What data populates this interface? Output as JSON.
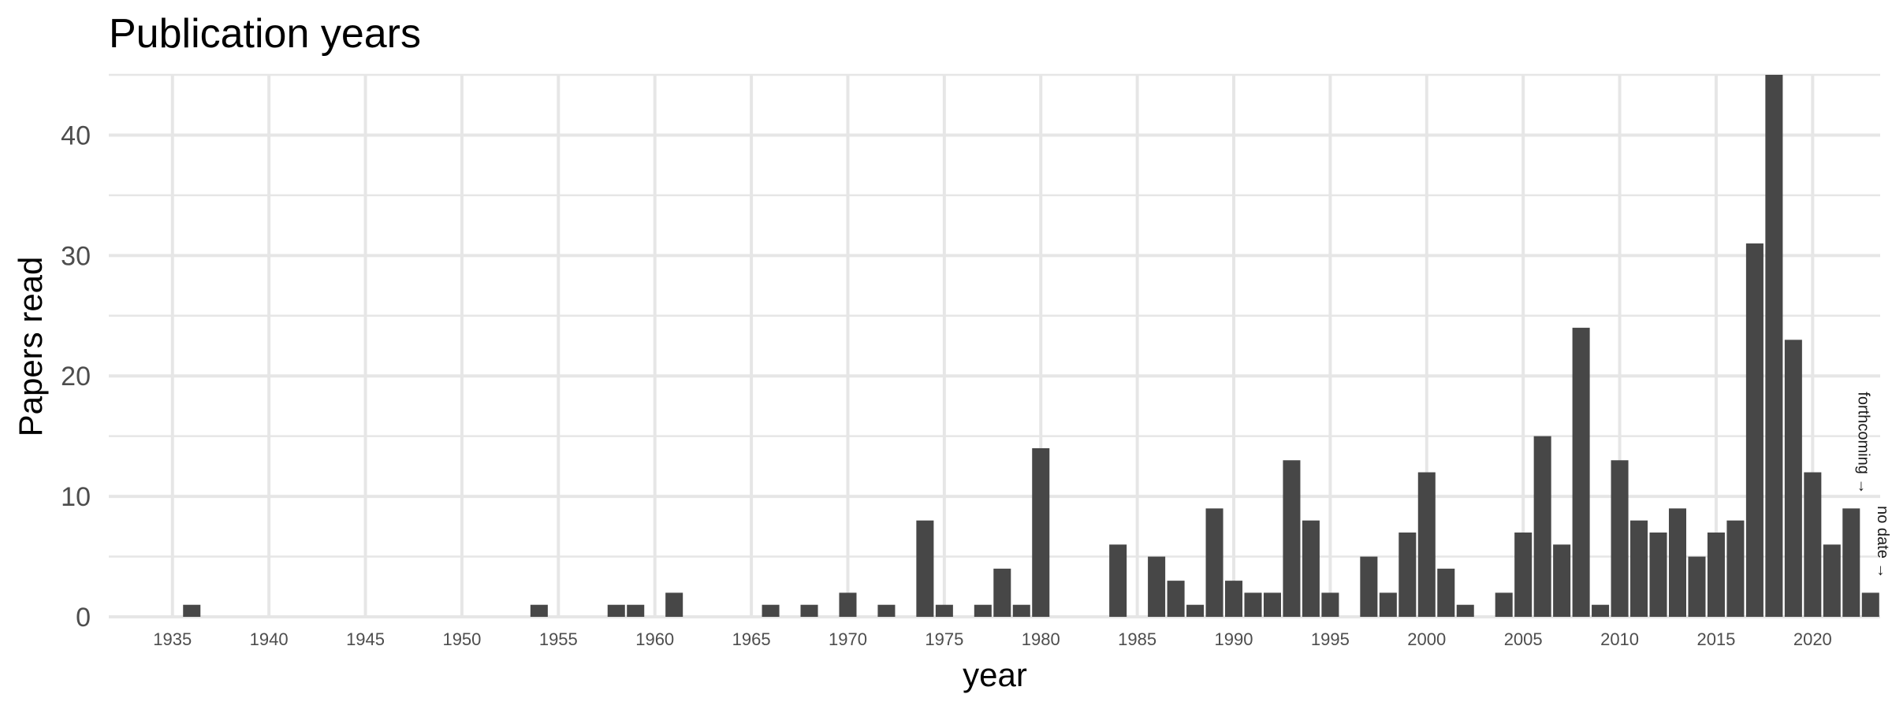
{
  "chart_data": {
    "type": "bar",
    "title": "Publication years",
    "xlabel": "year",
    "ylabel": "Papers read",
    "ylim": [
      0,
      45
    ],
    "yticks": [
      0,
      10,
      20,
      30,
      40
    ],
    "xticks": [
      1935,
      1940,
      1945,
      1950,
      1955,
      1960,
      1965,
      1970,
      1975,
      1980,
      1985,
      1990,
      1995,
      2000,
      2005,
      2010,
      2015,
      2020
    ],
    "grid": true,
    "bar_color": "#474747",
    "grid_color": "#e6e6e6",
    "x": [
      1936,
      1954,
      1958,
      1959,
      1961,
      1966,
      1968,
      1970,
      1972,
      1974,
      1975,
      1977,
      1978,
      1979,
      1980,
      1984,
      1986,
      1987,
      1988,
      1989,
      1990,
      1991,
      1992,
      1993,
      1994,
      1995,
      1997,
      1998,
      1999,
      2000,
      2001,
      2002,
      2004,
      2005,
      2006,
      2007,
      2008,
      2009,
      2010,
      2011,
      2012,
      2013,
      2014,
      2015,
      2016,
      2017,
      2018,
      2019,
      2020,
      2021,
      2022,
      2023
    ],
    "values": [
      1,
      1,
      1,
      1,
      2,
      1,
      1,
      2,
      1,
      8,
      1,
      1,
      4,
      1,
      14,
      6,
      5,
      3,
      1,
      9,
      3,
      2,
      2,
      13,
      8,
      2,
      5,
      2,
      7,
      12,
      4,
      1,
      2,
      7,
      15,
      6,
      24,
      1,
      13,
      8,
      7,
      9,
      5,
      7,
      8,
      31,
      45,
      23,
      12,
      6,
      9,
      2
    ],
    "annotations": [
      {
        "text": "forthcoming →",
        "x": 2022
      },
      {
        "text": "no date →",
        "x": 2023
      }
    ]
  }
}
